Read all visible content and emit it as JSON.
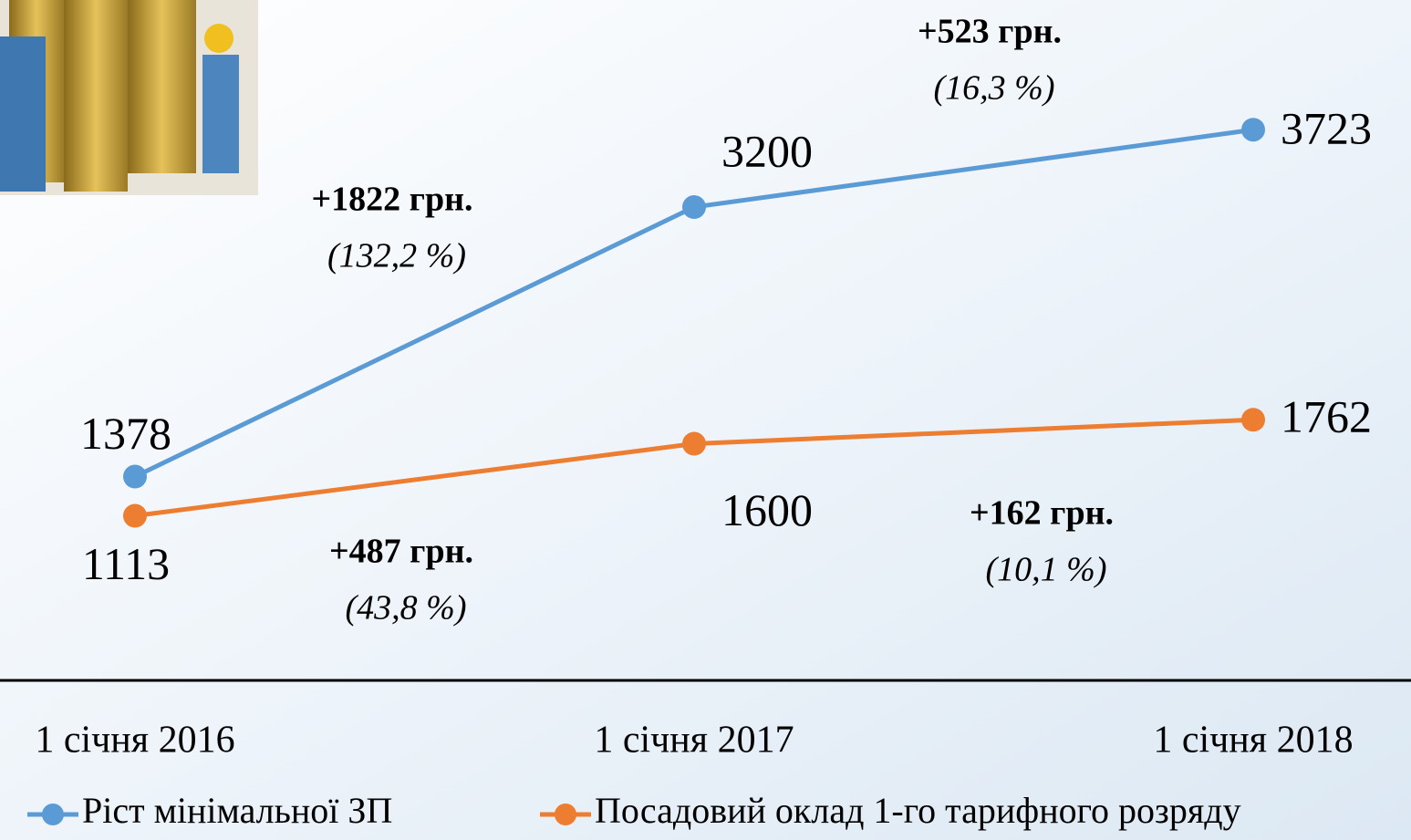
{
  "chart_data": {
    "type": "line",
    "categories": [
      "1 січня 2016",
      "1 січня 2017",
      "1 січня 2018"
    ],
    "series": [
      {
        "name": "Ріст мінімальної ЗП",
        "color": "#5b9bd5",
        "values": [
          1378,
          3200,
          3723
        ]
      },
      {
        "name": "Посадовий оклад 1-го тарифного розряду",
        "color": "#ed7d31",
        "values": [
          1113,
          1600,
          1762
        ]
      }
    ],
    "ylim": [
      0,
      4600
    ],
    "annotations": [
      {
        "text": "+1822 грн.",
        "note": "(132,2 %)"
      },
      {
        "text": "+523 грн.",
        "note": "(16,3 %)"
      },
      {
        "text": "+487 грн.",
        "note": "(43,8 %)"
      },
      {
        "text": "+162 грн.",
        "note": "(10,1 %)"
      }
    ]
  }
}
